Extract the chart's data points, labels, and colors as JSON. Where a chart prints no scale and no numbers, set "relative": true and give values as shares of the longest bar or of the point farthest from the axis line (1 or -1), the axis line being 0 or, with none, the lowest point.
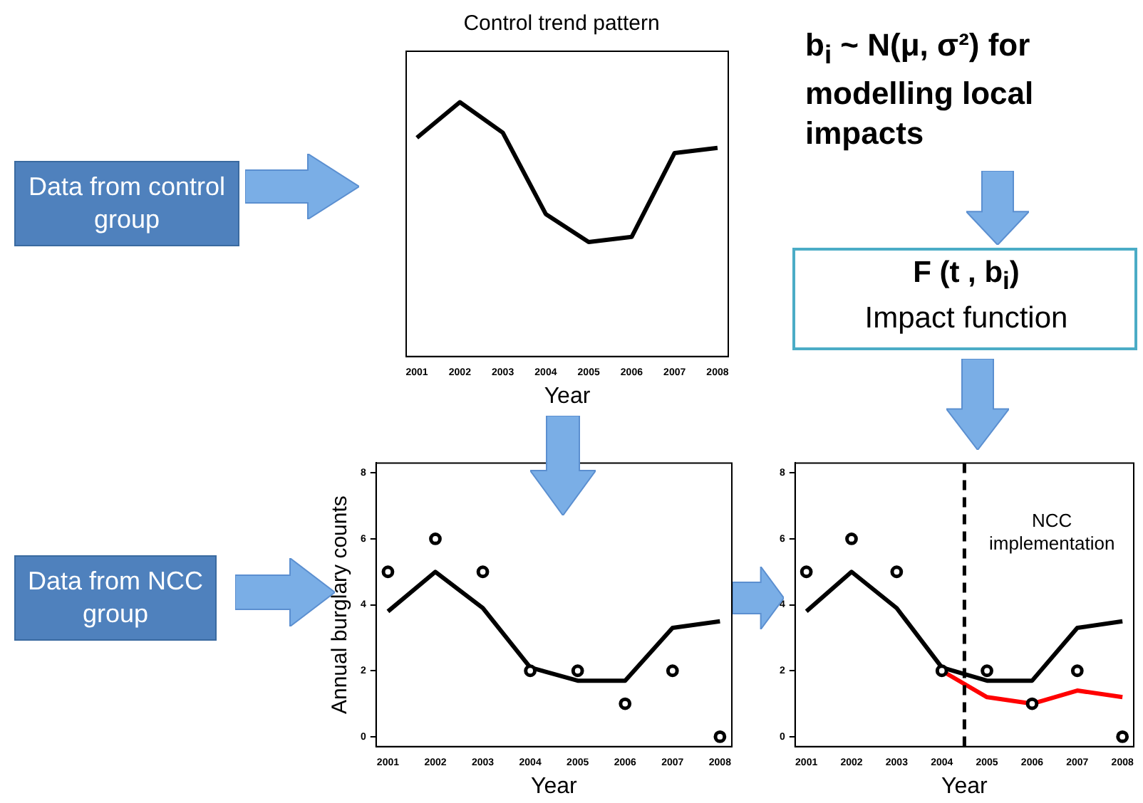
{
  "chart_data": [
    {
      "type": "line",
      "title": "Control trend pattern",
      "xlabel": "Year",
      "relative": true,
      "tick_labels": "x",
      "x": [
        2001,
        2002,
        2003,
        2004,
        2005,
        2006,
        2007,
        2008
      ],
      "xlim": [
        2000.75,
        2008.25
      ],
      "xticks": [
        2001,
        2002,
        2003,
        2004,
        2005,
        2006,
        2007,
        2008
      ],
      "series": [
        {
          "color": "#000000",
          "marker": "none",
          "values": [
            0.86,
            1,
            0.88,
            0.56,
            0.45,
            0.47,
            0.8,
            0.82
          ]
        }
      ]
    },
    {
      "type": "line",
      "xlabel": "Year",
      "ylabel": "Annual burglary counts",
      "x": [
        2001,
        2002,
        2003,
        2004,
        2005,
        2006,
        2007,
        2008
      ],
      "xlim": [
        2000.75,
        2008.25
      ],
      "xticks": [
        2001,
        2002,
        2003,
        2004,
        2005,
        2006,
        2007,
        2008
      ],
      "ylim": [
        -0.3,
        8.3
      ],
      "yticks": [
        0,
        2,
        4,
        6,
        8
      ],
      "series": [
        {
          "type": "scatter",
          "color": "#000000",
          "marker": "circle",
          "values": [
            5,
            6,
            5,
            2,
            2,
            1,
            2,
            0
          ]
        },
        {
          "type": "line",
          "color": "#000000",
          "marker": "none",
          "values": [
            3.8,
            5.0,
            3.9,
            2.1,
            1.7,
            1.7,
            3.3,
            3.5
          ]
        }
      ]
    },
    {
      "type": "line",
      "xlabel": "Year",
      "x": [
        2001,
        2002,
        2003,
        2004,
        2005,
        2006,
        2007,
        2008
      ],
      "xlim": [
        2000.75,
        2008.25
      ],
      "xticks": [
        2001,
        2002,
        2003,
        2004,
        2005,
        2006,
        2007,
        2008
      ],
      "ylim": [
        -0.3,
        8.3
      ],
      "yticks": [
        0,
        2,
        4,
        6,
        8
      ],
      "annotations": [
        "NCC implementation"
      ],
      "ref_lines": [
        {
          "axis": "x",
          "value": 2004.5,
          "line_style": "dashed",
          "color": "#000000"
        }
      ],
      "series": [
        {
          "type": "scatter",
          "color": "#000000",
          "marker": "circle",
          "values": [
            5,
            6,
            5,
            2,
            2,
            1,
            2,
            0
          ]
        },
        {
          "type": "line",
          "color": "#000000",
          "marker": "none",
          "values": [
            3.8,
            5.0,
            3.9,
            2.1,
            1.7,
            1.7,
            3.3,
            3.5
          ]
        },
        {
          "type": "line",
          "color": "#ff0000",
          "marker": "none",
          "values": [
            null,
            null,
            null,
            2.0,
            1.2,
            1.0,
            1.4,
            1.2
          ]
        }
      ]
    },
    {
      "type": "other",
      "annotations": [
        "Data from control group",
        "Data from NCC group",
        "b$_{i}$ ~ N(μ, σ²) for modelling local impacts",
        "F (t , b$_{i}$)",
        "Impact function"
      ]
    }
  ]
}
